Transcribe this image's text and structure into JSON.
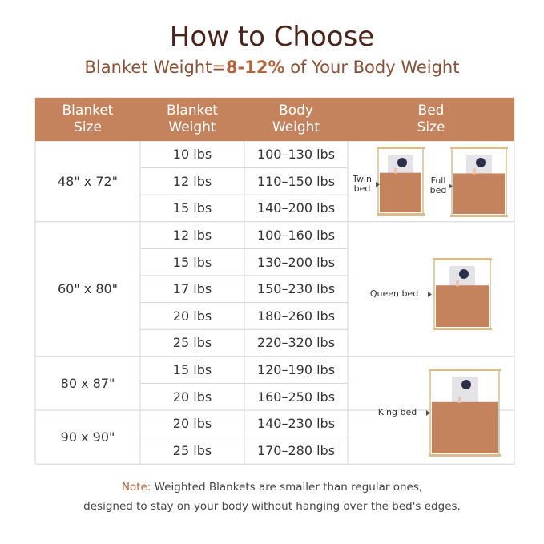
{
  "header": {
    "title": "How to Choose",
    "subtitle": [
      "Blanket Weight=",
      "8-12%",
      " of Your Body Weight"
    ]
  },
  "table": {
    "columns": [
      [
        "Blanket",
        "Size"
      ],
      [
        "Blanket",
        "Weight"
      ],
      [
        "Body",
        "Weight"
      ],
      [
        "Bed",
        "Size"
      ]
    ],
    "groups": [
      {
        "size": "48\" x 72\"",
        "rows": [
          [
            "10 lbs",
            "100–130 lbs"
          ],
          [
            "12 lbs",
            "110–150 lbs"
          ],
          [
            "15 lbs",
            "140–200 lbs"
          ]
        ],
        "beds": [
          [
            "Twin",
            "bed"
          ],
          [
            "Full",
            "bed"
          ]
        ]
      },
      {
        "size": "60\" x 80\"",
        "rows": [
          [
            "12 lbs",
            "100–160 lbs"
          ],
          [
            "15 lbs",
            "130–200 lbs"
          ],
          [
            "17 lbs",
            "150–230 lbs"
          ],
          [
            "20 lbs",
            "180–260 lbs"
          ],
          [
            "25 lbs",
            "220–320 lbs"
          ]
        ],
        "beds": [
          [
            "Queen bed"
          ]
        ]
      },
      {
        "size": "80 x 87\"",
        "rows": [
          [
            "15 lbs",
            "120–190 lbs"
          ],
          [
            "20 lbs",
            "160–250 lbs"
          ]
        ],
        "beds": [
          [
            "King  bed"
          ]
        ]
      },
      {
        "size": "90 x 90\"",
        "rows": [
          [
            "20 lbs",
            "140–230 lbs"
          ],
          [
            "25 lbs",
            "170–280 lbs"
          ]
        ],
        "beds": []
      }
    ]
  },
  "note": {
    "label": "Note:",
    "lines": [
      " Weighted Blankets are smaller than regular ones,",
      "designed to stay on your body without hanging over the bed's edges."
    ]
  }
}
